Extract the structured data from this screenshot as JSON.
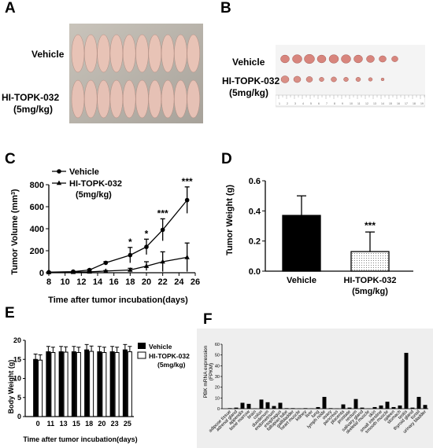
{
  "panel_labels": {
    "a": "A",
    "b": "B",
    "c": "C",
    "d": "D",
    "e": "E",
    "f": "F"
  },
  "photo_labels": {
    "a_vehicle": "Vehicle",
    "a_treated_1": "HI-TOPK-032",
    "a_treated_2": "(5mg/kg)",
    "b_vehicle": "Vehicle",
    "b_treated_1": "HI-TOPK-032",
    "b_treated_2": "(5mg/kg)",
    "b_ruler_numbers": [
      "1",
      "2",
      "3",
      "4",
      "5",
      "6",
      "7",
      "8",
      "9",
      "10",
      "11",
      "12",
      "13",
      "14",
      "15",
      "16",
      "17",
      "18",
      "19"
    ]
  },
  "chart_data": [
    {
      "id": "C",
      "type": "line",
      "xlabel": "Time after tumor incubation(days)",
      "ylabel": "Tumor Volume (mm3)",
      "ylabel_main": "Tumor Volume (mm",
      "ylabel_sup": "3",
      "ylabel_end": ")",
      "xlim": [
        8,
        26
      ],
      "ylim": [
        0,
        800
      ],
      "xticks": [
        "8",
        "10",
        "12",
        "14",
        "16",
        "18",
        "20",
        "22",
        "24",
        "26"
      ],
      "yticks": [
        "0",
        "200",
        "400",
        "600",
        "800"
      ],
      "legend": [
        "Vehicle",
        "HI-TOPK-032",
        "(5mg/kg)"
      ],
      "series": [
        {
          "name": "Vehicle",
          "marker": "circle",
          "x": [
            8,
            11,
            13,
            15,
            18,
            20,
            22,
            25
          ],
          "y": [
            5,
            10,
            25,
            90,
            160,
            235,
            390,
            660
          ],
          "err": [
            2,
            3,
            5,
            10,
            70,
            70,
            100,
            120
          ]
        },
        {
          "name": "HI-TOPK-032 (5mg/kg)",
          "marker": "triangle",
          "x": [
            8,
            11,
            13,
            15,
            18,
            20,
            22,
            25
          ],
          "y": [
            3,
            5,
            8,
            15,
            25,
            60,
            100,
            140
          ],
          "err": [
            2,
            2,
            3,
            5,
            15,
            40,
            90,
            130
          ]
        }
      ],
      "significance": [
        {
          "x": 18,
          "label": "*"
        },
        {
          "x": 20,
          "label": "*"
        },
        {
          "x": 22,
          "label": "***"
        },
        {
          "x": 25,
          "label": "***"
        }
      ]
    },
    {
      "id": "D",
      "type": "bar",
      "categories": [
        "Vehicle",
        "HI-TOPK-032"
      ],
      "category_sub": [
        "",
        "(5mg/kg)"
      ],
      "values": [
        0.37,
        0.13
      ],
      "err": [
        0.13,
        0.13
      ],
      "ylabel": "Tumor Weight (g)",
      "ylim": [
        0,
        0.6
      ],
      "yticks": [
        "0.0",
        "0.2",
        "0.4",
        "0.6"
      ],
      "significance": [
        {
          "category": "HI-TOPK-032",
          "label": "***"
        }
      ],
      "colors": {
        "Vehicle": "#000000",
        "HI-TOPK-032": "dotted-white"
      }
    },
    {
      "id": "E",
      "type": "bar",
      "categories": [
        "0",
        "11",
        "13",
        "15",
        "18",
        "20",
        "23",
        "25"
      ],
      "series": [
        {
          "name": "Vehicle",
          "values": [
            15,
            17,
            17,
            17,
            17.5,
            17,
            17,
            17.5
          ]
        },
        {
          "name": "HI-TOPK-032 (5mg/kg)",
          "values": [
            14.8,
            16.8,
            16.9,
            16.8,
            17.1,
            16.8,
            16.8,
            17
          ]
        }
      ],
      "err": 1.4,
      "xlabel": "Time after tumor incubation(days)",
      "ylabel": "Body Weight (g)",
      "ylim": [
        0,
        20
      ],
      "yticks": [
        "0",
        "5",
        "10",
        "15",
        "20"
      ],
      "legend": [
        "Vehicle",
        "HI-TOPK-032",
        "(5mg/kg)"
      ]
    },
    {
      "id": "F",
      "type": "bar",
      "ylabel": "PBK mRNA expression (FPKM)",
      "ylabel_1": "PBK mRNA expression",
      "ylabel_2": "(FPKM)",
      "ylim": [
        0,
        60
      ],
      "yticks": [
        "0",
        "10",
        "20",
        "30",
        "40",
        "50",
        "60"
      ],
      "categories": [
        "adipose tissue",
        "adrenal gland",
        "appendix",
        "bone marrow",
        "brain",
        "colon",
        "duodenum",
        "endometrium",
        "esophagus",
        "fallopian tube",
        "gallbladder",
        "heart muscle",
        "kidney",
        "liver",
        "lung",
        "lymph node",
        "ovary",
        "pancreas",
        "placenta",
        "prostate",
        "rectum",
        "salivary gland",
        "skeletal muscle",
        "skin",
        "small intestine",
        "smooth muscle",
        "spleen",
        "stomach",
        "testis",
        "thyroid gland",
        "tonsil",
        "urinary bladder"
      ],
      "values": [
        0.5,
        1,
        5.5,
        4.5,
        0.3,
        8.5,
        6,
        2.5,
        5.5,
        0.5,
        0.5,
        0.2,
        0.5,
        0.3,
        1.5,
        11,
        0.5,
        0.2,
        4,
        1,
        9,
        1,
        0.2,
        1.5,
        3,
        6.5,
        1.5,
        3,
        52,
        1,
        11,
        3.5
      ],
      "colors": {
        "bar": "#000000",
        "background": "#eeeeee"
      }
    }
  ]
}
